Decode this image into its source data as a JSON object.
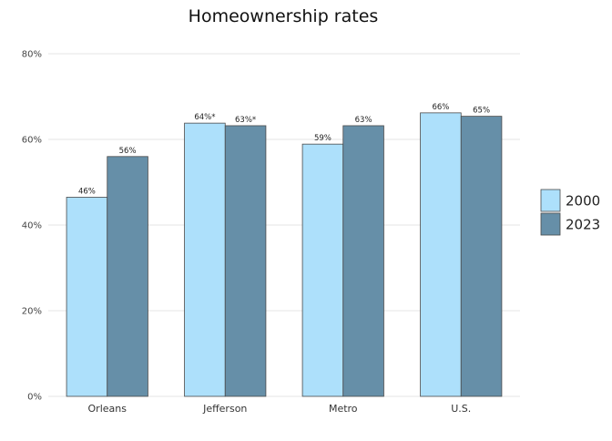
{
  "chart_data": {
    "type": "bar",
    "title": "Homeownership rates",
    "xlabel": "",
    "ylabel": "",
    "categories": [
      "Orleans",
      "Jefferson",
      "Metro",
      "U.S."
    ],
    "series": [
      {
        "name": "2000",
        "color": "#ade0fb",
        "values": [
          46.5,
          63.8,
          58.9,
          66.2
        ],
        "labels": [
          "46%",
          "64%*",
          "59%",
          "66%"
        ]
      },
      {
        "name": "2023",
        "color": "#668fa8",
        "values": [
          56,
          63.2,
          63.2,
          65.4
        ],
        "labels": [
          "56%",
          "63%*",
          "63%",
          "65%"
        ]
      }
    ],
    "ylim": [
      0,
      80
    ],
    "yticks": [
      0,
      20,
      40,
      60,
      80
    ],
    "ytick_labels": [
      "0%",
      "20%",
      "40%",
      "60%",
      "80%"
    ],
    "grid": true,
    "legend_position": "right"
  }
}
